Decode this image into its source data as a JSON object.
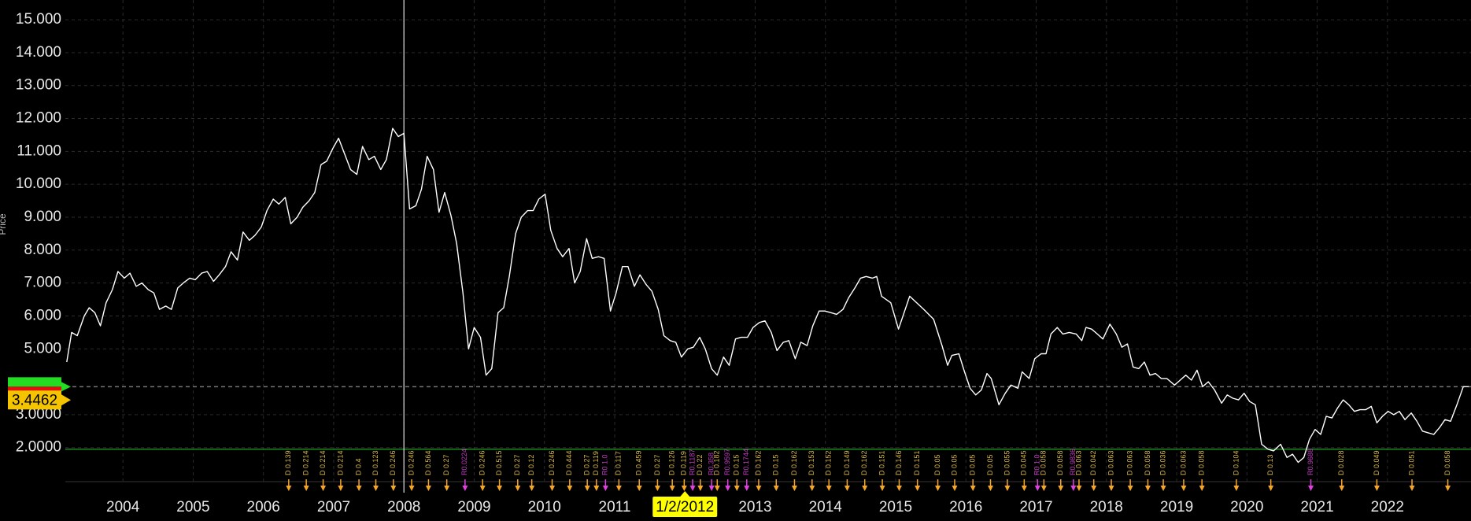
{
  "chart_data": {
    "type": "line",
    "ylabel": "Price",
    "xlim": [
      2003.18,
      2023.19
    ],
    "ylim": [
      0.63,
      15.6
    ],
    "xticks": [
      2004,
      2005,
      2006,
      2007,
      2008,
      2009,
      2010,
      2011,
      {
        "value": 2012,
        "label": "1/2/2012"
      },
      2013,
      2014,
      2015,
      2016,
      2017,
      2018,
      2019,
      2020,
      2021,
      2022
    ],
    "highlight_tick": 8,
    "yticks": [
      {
        "value": 15,
        "label": "15.000"
      },
      {
        "value": 14,
        "label": "14.000"
      },
      {
        "value": 13,
        "label": "13.000"
      },
      {
        "value": 12,
        "label": "12.000"
      },
      {
        "value": 11,
        "label": "11.000"
      },
      {
        "value": 10,
        "label": "10.000"
      },
      {
        "value": 9,
        "label": "9.000"
      },
      {
        "value": 8,
        "label": "8.000"
      },
      {
        "value": 7,
        "label": "7.000"
      },
      {
        "value": 6,
        "label": "6.000"
      },
      {
        "value": 5,
        "label": "5.000"
      },
      {
        "value": 3,
        "label": "3.0000"
      },
      {
        "value": 2,
        "label": "2.0000"
      }
    ],
    "grid": true,
    "crosshair_x": 2008,
    "series": [
      {
        "color": "#ffffff",
        "x": [
          2003.2,
          2003.27,
          2003.35,
          2003.45,
          2003.52,
          2003.6,
          2003.68,
          2003.76,
          2003.85,
          2003.93,
          2004.02,
          2004.1,
          2004.19,
          2004.27,
          2004.36,
          2004.44,
          2004.52,
          2004.61,
          2004.69,
          2004.78,
          2004.86,
          2004.95,
          2005.03,
          2005.12,
          2005.2,
          2005.29,
          2005.37,
          2005.46,
          2005.54,
          2005.63,
          2005.71,
          2005.8,
          2005.88,
          2005.97,
          2006.05,
          2006.14,
          2006.22,
          2006.31,
          2006.39,
          2006.48,
          2006.56,
          2006.65,
          2006.73,
          2006.82,
          2006.9,
          2006.99,
          2007.07,
          2007.16,
          2007.24,
          2007.33,
          2007.41,
          2007.5,
          2007.58,
          2007.67,
          2007.75,
          2007.84,
          2007.92,
          2008.0,
          2008.08,
          2008.17,
          2008.25,
          2008.33,
          2008.42,
          2008.5,
          2008.58,
          2008.67,
          2008.75,
          2008.84,
          2008.92,
          2009.0,
          2009.09,
          2009.17,
          2009.25,
          2009.34,
          2009.42,
          2009.5,
          2009.59,
          2009.67,
          2009.76,
          2009.84,
          2009.92,
          2010.01,
          2010.09,
          2010.18,
          2010.26,
          2010.35,
          2010.43,
          2010.51,
          2010.6,
          2010.68,
          2010.77,
          2010.85,
          2010.94,
          2011.02,
          2011.11,
          2011.19,
          2011.28,
          2011.36,
          2011.45,
          2011.53,
          2011.62,
          2011.7,
          2011.79,
          2011.87,
          2011.95,
          2012.04,
          2012.12,
          2012.21,
          2012.29,
          2012.38,
          2012.46,
          2012.55,
          2012.63,
          2012.72,
          2012.8,
          2012.89,
          2012.97,
          2013.06,
          2013.14,
          2013.23,
          2013.31,
          2013.4,
          2013.48,
          2013.57,
          2013.65,
          2013.74,
          2013.82,
          2013.91,
          2013.99,
          2014.08,
          2014.16,
          2014.25,
          2014.33,
          2014.42,
          2014.5,
          2014.58,
          2014.67,
          2014.73,
          2014.8,
          2014.93,
          2015.04,
          2015.2,
          2015.4,
          2015.54,
          2015.66,
          2015.74,
          2015.8,
          2015.9,
          2015.98,
          2016.06,
          2016.14,
          2016.22,
          2016.3,
          2016.36,
          2016.47,
          2016.56,
          2016.64,
          2016.74,
          2016.8,
          2016.9,
          2016.98,
          2017.07,
          2017.14,
          2017.21,
          2017.3,
          2017.38,
          2017.47,
          2017.57,
          2017.65,
          2017.71,
          2017.79,
          2017.87,
          2017.95,
          2018.05,
          2018.14,
          2018.22,
          2018.3,
          2018.38,
          2018.46,
          2018.54,
          2018.62,
          2018.7,
          2018.78,
          2018.86,
          2018.97,
          2019.05,
          2019.13,
          2019.21,
          2019.29,
          2019.37,
          2019.45,
          2019.54,
          2019.64,
          2019.72,
          2019.8,
          2019.88,
          2019.96,
          2020.04,
          2020.12,
          2020.21,
          2020.3,
          2020.38,
          2020.48,
          2020.57,
          2020.65,
          2020.73,
          2020.81,
          2020.89,
          2020.97,
          2021.05,
          2021.13,
          2021.21,
          2021.29,
          2021.37,
          2021.45,
          2021.53,
          2021.61,
          2021.69,
          2021.77,
          2021.85,
          2021.93,
          2022.01,
          2022.09,
          2022.17,
          2022.25,
          2022.34,
          2022.42,
          2022.5,
          2022.58,
          2022.66,
          2022.74,
          2022.82,
          2022.9,
          2022.99,
          2023.08,
          2023.16
        ],
        "values": [
          4.6,
          5.5,
          5.4,
          6.0,
          6.25,
          6.1,
          5.7,
          6.4,
          6.8,
          7.35,
          7.15,
          7.3,
          6.9,
          7.0,
          6.8,
          6.7,
          6.2,
          6.3,
          6.2,
          6.85,
          7.0,
          7.15,
          7.1,
          7.3,
          7.35,
          7.05,
          7.25,
          7.5,
          7.95,
          7.7,
          8.55,
          8.3,
          8.45,
          8.7,
          9.2,
          9.55,
          9.4,
          9.6,
          8.8,
          9.0,
          9.3,
          9.5,
          9.75,
          10.6,
          10.7,
          11.1,
          11.4,
          10.9,
          10.45,
          10.3,
          11.15,
          10.75,
          10.85,
          10.45,
          10.75,
          11.7,
          11.45,
          11.55,
          9.25,
          9.35,
          9.85,
          10.85,
          10.45,
          9.15,
          9.75,
          9.05,
          8.2,
          6.7,
          5.0,
          5.65,
          5.35,
          4.2,
          4.4,
          6.1,
          6.25,
          7.2,
          8.5,
          9.0,
          9.2,
          9.2,
          9.55,
          9.7,
          8.6,
          8.05,
          7.8,
          8.05,
          7.0,
          7.35,
          8.35,
          7.75,
          7.8,
          7.75,
          6.15,
          6.7,
          7.5,
          7.5,
          6.9,
          7.25,
          6.95,
          6.75,
          6.2,
          5.4,
          5.25,
          5.2,
          4.75,
          5.0,
          5.05,
          5.35,
          5.0,
          4.4,
          4.2,
          4.75,
          4.5,
          5.3,
          5.35,
          5.35,
          5.65,
          5.8,
          5.85,
          5.5,
          4.95,
          5.2,
          5.25,
          4.7,
          5.2,
          5.1,
          5.7,
          6.15,
          6.15,
          6.1,
          6.05,
          6.2,
          6.55,
          6.85,
          7.15,
          7.2,
          7.15,
          7.2,
          6.6,
          6.4,
          5.6,
          6.6,
          6.2,
          5.9,
          5.1,
          4.5,
          4.8,
          4.85,
          4.3,
          3.8,
          3.6,
          3.75,
          4.25,
          4.1,
          3.3,
          3.65,
          3.9,
          3.8,
          4.3,
          4.1,
          4.7,
          4.85,
          4.85,
          5.45,
          5.65,
          5.45,
          5.5,
          5.45,
          5.25,
          5.65,
          5.6,
          5.45,
          5.3,
          5.75,
          5.45,
          5.05,
          5.15,
          4.45,
          4.4,
          4.6,
          4.2,
          4.25,
          4.1,
          4.1,
          3.9,
          4.05,
          4.2,
          4.05,
          4.35,
          3.85,
          4.0,
          3.75,
          3.35,
          3.6,
          3.5,
          3.45,
          3.65,
          3.4,
          3.3,
          2.1,
          1.95,
          1.9,
          2.1,
          1.7,
          1.8,
          1.55,
          1.7,
          2.25,
          2.55,
          2.4,
          2.95,
          2.9,
          3.2,
          3.45,
          3.3,
          3.1,
          3.15,
          3.15,
          3.25,
          2.75,
          2.95,
          3.1,
          3.0,
          3.1,
          2.85,
          3.05,
          2.8,
          2.5,
          2.45,
          2.4,
          2.6,
          2.85,
          2.8,
          3.3,
          3.85,
          3.85
        ]
      }
    ],
    "events": [
      {
        "color": "#d9b84a",
        "arrow_color": "#f5a623",
        "x": [
          2006.36,
          2006.61,
          2006.85,
          2007.1,
          2007.36,
          2007.6,
          2007.85,
          2008.11,
          2008.35,
          2008.61,
          2009.12,
          2009.36,
          2009.62,
          2009.82,
          2010.11,
          2010.36,
          2010.61,
          2010.74,
          2011.06,
          2011.35,
          2011.61,
          2011.82,
          2011.99,
          2012.22,
          2012.46,
          2012.74,
          2013.05,
          2013.3,
          2013.56,
          2013.81,
          2014.05,
          2014.31,
          2014.56,
          2014.81,
          2015.05,
          2015.31,
          2015.6,
          2015.84,
          2016.1,
          2016.35,
          2016.59,
          2016.83,
          2017.11,
          2017.35,
          2017.61,
          2017.82,
          2018.07,
          2018.34,
          2018.59,
          2018.81,
          2019.1,
          2019.36,
          2019.85,
          2020.34,
          2021.35,
          2021.85,
          2022.35,
          2022.86
        ],
        "labels": [
          "D 0.139",
          "D 0.214",
          "D 0.214",
          "D 0.214",
          "D 0.4",
          "D 0.123",
          "D 0.246",
          "D 0.246",
          "D 0.564",
          "D 0.27",
          "D 0.246",
          "D 0.515",
          "D 0.27",
          "D 0.12",
          "D 0.246",
          "D 0.444",
          "D 0.27",
          "D 0.119",
          "D 0.117",
          "D 0.459",
          "D 0.27",
          "D 0.126",
          "D 0.119",
          "D 0.22",
          "D 0.182",
          "D 0.15",
          "D 0.162",
          "D 0.15",
          "D 0.162",
          "D 0.153",
          "D 0.152",
          "D 0.149",
          "D 0.162",
          "D 0.151",
          "D 0.146",
          "D 0.151",
          "D 0.05",
          "D 0.05",
          "D 0.05",
          "D 0.05",
          "D 0.055",
          "D 0.045",
          "D 0.058",
          "D 0.058",
          "D 0.063",
          "D 0.042",
          "D 0.063",
          "D 0.063",
          "D 0.058",
          "D 0.036",
          "D 0.063",
          "D 0.058",
          "D 0.104",
          "D 0.13",
          "D 0.028",
          "D 0.049",
          "D 0.051",
          "D 0.058"
        ]
      },
      {
        "color": "#c23bc2",
        "arrow_color": "#e040e0",
        "x": [
          2008.87,
          2010.87,
          2012.11,
          2012.38,
          2012.61,
          2012.88,
          2017.02,
          2017.53,
          2020.91
        ],
        "labels": [
          "R0.0224",
          "R0 1.0",
          "R0.1187",
          "R0.358",
          "R0.9597",
          "R0.1744",
          "R0 1.0",
          "R0.9836",
          "R0.9688"
        ]
      }
    ],
    "hlines": [
      {
        "value": 3.85,
        "color": "#777777",
        "dashed": true
      },
      {
        "value": 1.95,
        "color": "#1e8a1e",
        "dashed": false
      }
    ],
    "badges": [
      {
        "value": 3.85,
        "color": "#22dd22",
        "color2": "#e01010"
      },
      {
        "value": 3.4462,
        "label": "3.4462",
        "color": "#f5c400"
      }
    ]
  }
}
